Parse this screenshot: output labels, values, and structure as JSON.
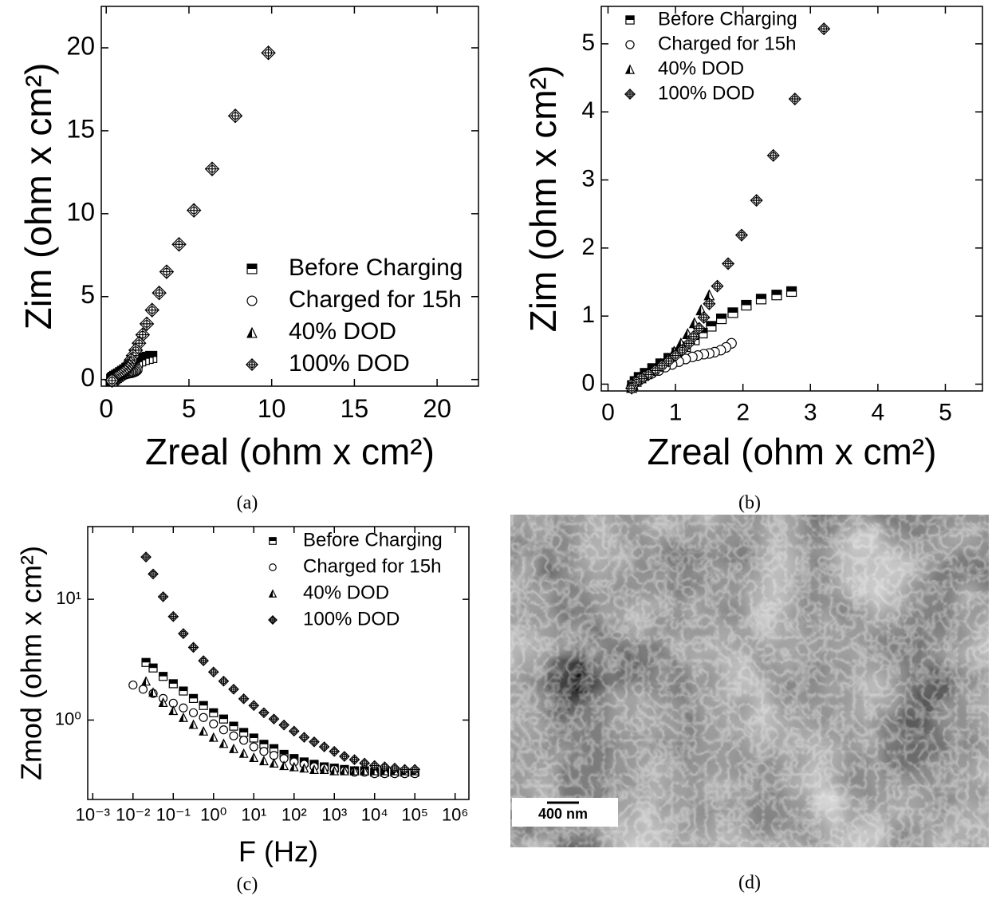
{
  "chart_data": [
    {
      "type": "scatter",
      "caption": "(a)",
      "xlabel": "Zreal (ohm x cm²)",
      "ylabel": "Zim (ohm x cm²)",
      "xlim": [
        -0.3,
        22.5
      ],
      "ylim": [
        -0.4,
        22.5
      ],
      "xticks": [
        0,
        5,
        10,
        15,
        20
      ],
      "yticks": [
        0,
        5,
        10,
        15,
        20
      ],
      "grid": false,
      "legend": "lower right",
      "series": [
        {
          "name": "Before Charging",
          "color": "#000000",
          "marker": "square",
          "x": [
            2.72,
            2.5,
            2.27,
            2.05,
            1.85,
            1.68,
            1.53,
            1.4,
            1.28,
            1.15,
            1.02,
            0.9,
            0.78,
            0.66,
            0.55,
            0.46,
            0.4,
            0.36
          ],
          "values": [
            1.36,
            1.31,
            1.25,
            1.16,
            1.05,
            0.96,
            0.85,
            0.75,
            0.65,
            0.55,
            0.46,
            0.38,
            0.3,
            0.23,
            0.16,
            0.1,
            0.04,
            -0.02
          ]
        },
        {
          "name": "Charged for 15h",
          "color": "#000000",
          "marker": "circle",
          "x": [
            1.83,
            1.75,
            1.67,
            1.58,
            1.5,
            1.42,
            1.33,
            1.25,
            1.15,
            1.05,
            0.95,
            0.85,
            0.75,
            0.65,
            0.56,
            0.48,
            0.42,
            0.37,
            0.35
          ],
          "values": [
            0.6,
            0.54,
            0.5,
            0.47,
            0.45,
            0.44,
            0.42,
            0.4,
            0.37,
            0.33,
            0.29,
            0.25,
            0.2,
            0.16,
            0.12,
            0.08,
            0.04,
            0,
            -0.04
          ]
        },
        {
          "name": "40% DOD",
          "color": "#000000",
          "marker": "triangle",
          "x": [
            1.5,
            1.38,
            1.28,
            1.18,
            1.08,
            0.98,
            0.88,
            0.78,
            0.68,
            0.58,
            0.49,
            0.42,
            0.37,
            0.35
          ],
          "values": [
            1.31,
            1.09,
            0.9,
            0.74,
            0.6,
            0.48,
            0.38,
            0.3,
            0.22,
            0.15,
            0.09,
            0.04,
            -0.01,
            -0.05
          ]
        },
        {
          "name": "100% DOD",
          "color": "#000000",
          "marker": "diamond",
          "x": [
            9.8,
            7.8,
            6.4,
            5.3,
            4.4,
            3.65,
            3.2,
            2.77,
            2.45,
            2.2,
            1.98,
            1.78,
            1.62,
            1.5,
            1.42,
            1.35,
            1.27,
            1.2,
            1.1,
            1.0,
            0.9,
            0.8,
            0.7,
            0.6,
            0.5,
            0.42,
            0.37,
            0.35
          ],
          "values": [
            19.7,
            15.9,
            12.7,
            10.2,
            8.15,
            6.5,
            5.22,
            4.19,
            3.36,
            2.7,
            2.19,
            1.77,
            1.44,
            1.18,
            0.98,
            0.82,
            0.7,
            0.6,
            0.5,
            0.42,
            0.34,
            0.27,
            0.2,
            0.14,
            0.08,
            0.03,
            -0.02,
            -0.06
          ]
        }
      ]
    },
    {
      "type": "scatter",
      "caption": "(b)",
      "xlabel": "Zreal (ohm x cm²)",
      "ylabel": "Zim (ohm x cm²)",
      "xlim": [
        -0.1,
        5.55
      ],
      "ylim": [
        -0.1,
        5.55
      ],
      "xticks": [
        0,
        1,
        2,
        3,
        4,
        5
      ],
      "yticks": [
        0,
        1,
        2,
        3,
        4,
        5
      ],
      "grid": false,
      "legend": "upper left",
      "series": [
        {
          "name": "Before Charging",
          "color": "#000000",
          "marker": "square",
          "x": [
            2.72,
            2.5,
            2.27,
            2.05,
            1.85,
            1.68,
            1.53,
            1.4,
            1.28,
            1.15,
            1.02,
            0.9,
            0.78,
            0.66,
            0.55,
            0.46,
            0.4,
            0.36
          ],
          "values": [
            1.36,
            1.31,
            1.25,
            1.16,
            1.05,
            0.96,
            0.85,
            0.75,
            0.65,
            0.55,
            0.46,
            0.38,
            0.3,
            0.23,
            0.16,
            0.1,
            0.04,
            -0.02
          ]
        },
        {
          "name": "Charged for 15h",
          "color": "#000000",
          "marker": "circle",
          "x": [
            1.83,
            1.75,
            1.67,
            1.58,
            1.5,
            1.42,
            1.33,
            1.25,
            1.15,
            1.05,
            0.95,
            0.85,
            0.75,
            0.65,
            0.56,
            0.48,
            0.42,
            0.37,
            0.35
          ],
          "values": [
            0.6,
            0.54,
            0.5,
            0.47,
            0.45,
            0.44,
            0.42,
            0.4,
            0.37,
            0.33,
            0.29,
            0.25,
            0.2,
            0.16,
            0.12,
            0.08,
            0.04,
            0,
            -0.04
          ]
        },
        {
          "name": "40% DOD",
          "color": "#000000",
          "marker": "triangle",
          "x": [
            1.5,
            1.38,
            1.28,
            1.18,
            1.08,
            0.98,
            0.88,
            0.78,
            0.68,
            0.58,
            0.49,
            0.42,
            0.37,
            0.35
          ],
          "values": [
            1.31,
            1.09,
            0.9,
            0.74,
            0.6,
            0.48,
            0.38,
            0.3,
            0.22,
            0.15,
            0.09,
            0.04,
            -0.01,
            -0.05
          ]
        },
        {
          "name": "100% DOD",
          "color": "#000000",
          "marker": "diamond",
          "x": [
            3.2,
            2.77,
            2.45,
            2.2,
            1.98,
            1.78,
            1.62,
            1.5,
            1.42,
            1.35,
            1.27,
            1.2,
            1.1,
            1.0,
            0.9,
            0.8,
            0.7,
            0.6,
            0.5,
            0.42,
            0.37,
            0.35
          ],
          "values": [
            5.22,
            4.19,
            3.36,
            2.7,
            2.19,
            1.77,
            1.44,
            1.18,
            0.98,
            0.82,
            0.7,
            0.6,
            0.5,
            0.42,
            0.34,
            0.27,
            0.2,
            0.14,
            0.08,
            0.03,
            -0.02,
            -0.06
          ]
        }
      ]
    },
    {
      "type": "scatter",
      "caption": "(c)",
      "xlabel": "F (Hz)",
      "ylabel": "Zmod (ohm x cm²)",
      "xscale": "log",
      "yscale": "log",
      "xlim": [
        0.00075,
        2200000
      ],
      "ylim": [
        0.22,
        40
      ],
      "xticks": [
        {
          "value": 0.001,
          "label": "10⁻³"
        },
        {
          "value": 0.01,
          "label": "10⁻²"
        },
        {
          "value": 0.1,
          "label": "10⁻¹"
        },
        {
          "value": 1,
          "label": "10⁰"
        },
        {
          "value": 10,
          "label": "10¹"
        },
        {
          "value": 100,
          "label": "10²"
        },
        {
          "value": 1000,
          "label": "10³"
        },
        {
          "value": 10000,
          "label": "10⁴"
        },
        {
          "value": 100000,
          "label": "10⁵"
        },
        {
          "value": 1000000,
          "label": "10⁶"
        }
      ],
      "yticks": [
        {
          "value": 1,
          "label": "10⁰"
        },
        {
          "value": 10,
          "label": "10¹"
        }
      ],
      "grid": false,
      "legend": "upper right",
      "series": [
        {
          "name": "Before Charging",
          "color": "#000000",
          "marker": "square",
          "x": [
            0.021,
            0.0316,
            0.056,
            0.1,
            0.178,
            0.316,
            0.562,
            1,
            1.78,
            3.16,
            5.62,
            10,
            17.8,
            31.6,
            56.2,
            100,
            178,
            316,
            562,
            1000,
            1780,
            3160,
            5620,
            10000,
            17800,
            31600,
            56200,
            100000
          ],
          "values": [
            3.0,
            2.7,
            2.3,
            2.0,
            1.74,
            1.51,
            1.32,
            1.15,
            1.02,
            0.89,
            0.79,
            0.71,
            0.63,
            0.58,
            0.52,
            0.48,
            0.45,
            0.43,
            0.41,
            0.4,
            0.39,
            0.38,
            0.38,
            0.37,
            0.37,
            0.37,
            0.37,
            0.37
          ]
        },
        {
          "name": "Charged for 15h",
          "color": "#000000",
          "marker": "circle",
          "x": [
            0.01,
            0.0178,
            0.0316,
            0.056,
            0.1,
            0.178,
            0.316,
            0.562,
            1,
            1.78,
            3.16,
            5.62,
            10,
            17.8,
            31.6,
            56.2,
            100,
            178,
            316,
            562,
            1000,
            1780,
            3160,
            5620,
            10000,
            17800,
            31600,
            56200,
            100000
          ],
          "values": [
            1.95,
            1.8,
            1.66,
            1.51,
            1.38,
            1.26,
            1.15,
            1.05,
            0.93,
            0.83,
            0.74,
            0.68,
            0.6,
            0.55,
            0.51,
            0.48,
            0.45,
            0.43,
            0.41,
            0.4,
            0.39,
            0.38,
            0.37,
            0.37,
            0.36,
            0.36,
            0.36,
            0.36,
            0.36
          ]
        },
        {
          "name": "40% DOD",
          "color": "#000000",
          "marker": "triangle",
          "x": [
            0.021,
            0.0316,
            0.056,
            0.1,
            0.178,
            0.316,
            0.562,
            1,
            1.78,
            3.16,
            5.62,
            10,
            17.8,
            31.6,
            56.2,
            100,
            178,
            316,
            562,
            1000,
            1780,
            3160,
            5620,
            10000,
            17800,
            31600,
            56200,
            100000
          ],
          "values": [
            2.1,
            1.7,
            1.4,
            1.2,
            1.05,
            0.92,
            0.81,
            0.72,
            0.64,
            0.58,
            0.53,
            0.49,
            0.46,
            0.44,
            0.42,
            0.41,
            0.4,
            0.39,
            0.39,
            0.38,
            0.38,
            0.38,
            0.38,
            0.38,
            0.38,
            0.38,
            0.38,
            0.38
          ]
        },
        {
          "name": "100% DOD",
          "color": "#000000",
          "marker": "diamond",
          "x": [
            0.021,
            0.0316,
            0.056,
            0.1,
            0.178,
            0.316,
            0.562,
            1,
            1.78,
            3.16,
            5.62,
            10,
            17.8,
            31.6,
            56.2,
            100,
            178,
            316,
            562,
            1000,
            1780,
            3160,
            5620,
            10000,
            17800,
            31600,
            56200,
            100000
          ],
          "values": [
            22.4,
            16.2,
            10.5,
            7.2,
            5.2,
            4.0,
            3.1,
            2.5,
            2.1,
            1.8,
            1.5,
            1.32,
            1.15,
            1.02,
            0.91,
            0.81,
            0.72,
            0.66,
            0.6,
            0.55,
            0.5,
            0.47,
            0.44,
            0.42,
            0.41,
            0.4,
            0.39,
            0.39
          ]
        }
      ]
    }
  ],
  "image": {
    "caption": "(d)",
    "scale_bar": "400 nm"
  }
}
